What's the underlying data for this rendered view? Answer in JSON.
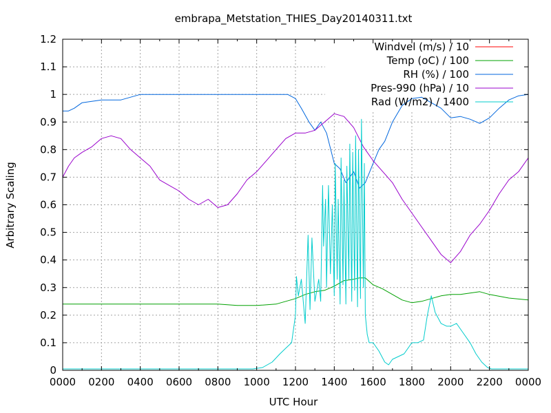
{
  "chart_data": {
    "type": "line",
    "title": "embrapa_Metstation_THIES_Day20140311.txt",
    "xlabel": "UTC Hour",
    "ylabel": "Arbitrary Scaling",
    "xlim": [
      0,
      24
    ],
    "ylim": [
      0,
      1.2
    ],
    "grid": true,
    "legend": "top-right",
    "x_ticks": [
      {
        "value": 0,
        "label": "0000"
      },
      {
        "value": 2,
        "label": "0200"
      },
      {
        "value": 4,
        "label": "0400"
      },
      {
        "value": 6,
        "label": "0600"
      },
      {
        "value": 8,
        "label": "0800"
      },
      {
        "value": 10,
        "label": "1000"
      },
      {
        "value": 12,
        "label": "1200"
      },
      {
        "value": 14,
        "label": "1400"
      },
      {
        "value": 16,
        "label": "1600"
      },
      {
        "value": 18,
        "label": "1800"
      },
      {
        "value": 20,
        "label": "2000"
      },
      {
        "value": 22,
        "label": "2200"
      },
      {
        "value": 24,
        "label": "0000"
      }
    ],
    "y_ticks": [
      {
        "value": 0,
        "label": "0"
      },
      {
        "value": 0.1,
        "label": "0.1"
      },
      {
        "value": 0.2,
        "label": "0.2"
      },
      {
        "value": 0.3,
        "label": "0.3"
      },
      {
        "value": 0.4,
        "label": "0.4"
      },
      {
        "value": 0.5,
        "label": "0.5"
      },
      {
        "value": 0.6,
        "label": "0.6"
      },
      {
        "value": 0.7,
        "label": "0.7"
      },
      {
        "value": 0.8,
        "label": "0.8"
      },
      {
        "value": 0.9,
        "label": "0.9"
      },
      {
        "value": 1,
        "label": "1"
      },
      {
        "value": 1.1,
        "label": "1.1"
      },
      {
        "value": 1.2,
        "label": "1.2"
      }
    ],
    "series": [
      {
        "name": "Windvel (m/s) / 10",
        "color": "#ff0000",
        "x": [],
        "y": []
      },
      {
        "name": "Temp (oC) / 100",
        "color": "#00a000",
        "x": [
          0,
          2,
          4,
          6,
          8,
          9,
          10,
          11,
          11.5,
          12,
          12.5,
          13,
          13.5,
          14,
          14.5,
          15,
          15.3,
          15.6,
          16,
          16.5,
          17,
          17.5,
          18,
          18.5,
          19,
          19.5,
          20,
          20.5,
          21,
          21.5,
          22,
          23,
          24
        ],
        "y": [
          0.24,
          0.24,
          0.24,
          0.24,
          0.24,
          0.235,
          0.235,
          0.24,
          0.25,
          0.26,
          0.275,
          0.285,
          0.29,
          0.305,
          0.325,
          0.33,
          0.335,
          0.335,
          0.31,
          0.295,
          0.275,
          0.255,
          0.245,
          0.25,
          0.26,
          0.27,
          0.275,
          0.275,
          0.28,
          0.285,
          0.275,
          0.262,
          0.255
        ]
      },
      {
        "name": "RH (%) / 100",
        "color": "#0066dd",
        "x": [
          0,
          0.3,
          0.6,
          1,
          1.5,
          2,
          3,
          3.5,
          4,
          6,
          8,
          10,
          11.6,
          12,
          12.3,
          12.7,
          13,
          13.3,
          13.6,
          14,
          14.3,
          14.6,
          15,
          15.3,
          15.6,
          16,
          16.3,
          16.6,
          17,
          17.5,
          18,
          18.5,
          19,
          19.5,
          20,
          20.5,
          21,
          21.5,
          22,
          22.5,
          23,
          23.5,
          24
        ],
        "y": [
          0.94,
          0.94,
          0.95,
          0.97,
          0.975,
          0.98,
          0.98,
          0.99,
          1.0,
          1.0,
          1.0,
          1.0,
          1.0,
          0.985,
          0.95,
          0.9,
          0.87,
          0.9,
          0.86,
          0.75,
          0.73,
          0.68,
          0.72,
          0.66,
          0.68,
          0.75,
          0.8,
          0.83,
          0.9,
          0.96,
          0.985,
          0.99,
          0.97,
          0.95,
          0.915,
          0.92,
          0.91,
          0.895,
          0.915,
          0.95,
          0.98,
          0.995,
          1.0
        ]
      },
      {
        "name": "Pres-990 (hPa) / 10",
        "color": "#9900cc",
        "x": [
          0,
          0.3,
          0.6,
          1,
          1.5,
          2,
          2.5,
          3,
          3.5,
          4,
          4.5,
          5,
          6,
          6.5,
          7,
          7.5,
          8,
          8.5,
          9,
          9.5,
          10,
          10.5,
          11,
          11.5,
          12,
          12.5,
          13,
          13.5,
          14,
          14.5,
          15,
          15.5,
          16,
          16.5,
          17,
          17.5,
          18,
          18.5,
          19,
          19.5,
          20,
          20.5,
          21,
          21.5,
          22,
          22.5,
          23,
          23.5,
          24
        ],
        "y": [
          0.7,
          0.74,
          0.77,
          0.79,
          0.81,
          0.84,
          0.85,
          0.84,
          0.8,
          0.77,
          0.74,
          0.69,
          0.65,
          0.62,
          0.6,
          0.62,
          0.59,
          0.6,
          0.64,
          0.69,
          0.72,
          0.76,
          0.8,
          0.84,
          0.86,
          0.86,
          0.87,
          0.9,
          0.93,
          0.92,
          0.88,
          0.81,
          0.76,
          0.72,
          0.68,
          0.62,
          0.57,
          0.52,
          0.47,
          0.42,
          0.39,
          0.43,
          0.49,
          0.53,
          0.58,
          0.64,
          0.69,
          0.72,
          0.77
        ]
      },
      {
        "name": "Rad (W/m2) / 1400",
        "color": "#00cccc",
        "x": [
          0,
          9.8,
          10.3,
          10.8,
          11.2,
          11.5,
          11.8,
          12.0,
          12.05,
          12.15,
          12.3,
          12.5,
          12.55,
          12.65,
          12.75,
          12.85,
          13.0,
          13.1,
          13.2,
          13.3,
          13.4,
          13.45,
          13.55,
          13.6,
          13.7,
          13.8,
          13.9,
          14.0,
          14.05,
          14.15,
          14.2,
          14.3,
          14.35,
          14.45,
          14.5,
          14.6,
          14.65,
          14.75,
          14.8,
          14.9,
          14.95,
          15.05,
          15.1,
          15.2,
          15.25,
          15.35,
          15.4,
          15.5,
          15.55,
          15.6,
          15.7,
          15.8,
          16.0,
          16.3,
          16.6,
          16.8,
          17.0,
          17.3,
          17.6,
          18.0,
          18.3,
          18.6,
          18.8,
          19.0,
          19.2,
          19.5,
          19.8,
          20.0,
          20.3,
          20.6,
          21.0,
          21.3,
          21.6,
          21.9,
          22.1,
          22.3,
          24
        ],
        "y": [
          0.005,
          0.005,
          0.01,
          0.03,
          0.06,
          0.08,
          0.1,
          0.2,
          0.34,
          0.27,
          0.33,
          0.17,
          0.28,
          0.49,
          0.22,
          0.48,
          0.25,
          0.29,
          0.33,
          0.25,
          0.67,
          0.45,
          0.62,
          0.3,
          0.67,
          0.35,
          0.6,
          0.27,
          0.75,
          0.33,
          0.62,
          0.24,
          0.77,
          0.31,
          0.69,
          0.24,
          0.74,
          0.33,
          0.82,
          0.25,
          0.79,
          0.29,
          0.85,
          0.23,
          0.8,
          0.26,
          0.91,
          0.3,
          0.75,
          0.2,
          0.13,
          0.1,
          0.1,
          0.07,
          0.03,
          0.02,
          0.04,
          0.05,
          0.06,
          0.1,
          0.1,
          0.11,
          0.2,
          0.27,
          0.21,
          0.17,
          0.16,
          0.16,
          0.17,
          0.14,
          0.1,
          0.06,
          0.03,
          0.01,
          0.005,
          0.005,
          0.005
        ]
      }
    ]
  }
}
